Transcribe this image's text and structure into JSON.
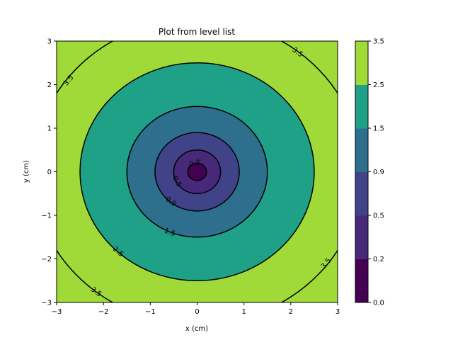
{
  "chart_data": {
    "type": "contour",
    "title": "Plot from level list",
    "xlabel": "x (cm)",
    "ylabel": "y (cm)",
    "xlim": [
      -3,
      3
    ],
    "ylim": [
      -3,
      3
    ],
    "x_ticks": [
      -3,
      -2,
      -1,
      0,
      1,
      2,
      3
    ],
    "y_ticks": [
      -3,
      -2,
      -1,
      0,
      1,
      2,
      3
    ],
    "x_tick_labels": [
      "−3",
      "−2",
      "−1",
      "0",
      "1",
      "2",
      "3"
    ],
    "y_tick_labels": [
      "−3",
      "−2",
      "−1",
      "0",
      "1",
      "2",
      "3"
    ],
    "function": "sqrt(x^2 + y^2)",
    "levels": [
      0.0,
      0.2,
      0.5,
      0.9,
      1.5,
      2.5,
      3.5
    ],
    "level_labels": [
      "0.0",
      "0.2",
      "0.5",
      "0.9",
      "1.5",
      "2.5",
      "3.5"
    ],
    "band_colors": [
      "#440154",
      "#482979",
      "#404387",
      "#2e6f8e",
      "#1fa187",
      "#a0da39"
    ],
    "contour_line_color": "#000000",
    "contour_labels": [
      {
        "level": 0.2,
        "text": "0.2",
        "x": -0.05,
        "y": 0.2
      },
      {
        "level": 0.5,
        "text": "0.5",
        "x": -0.42,
        "y": -0.22
      },
      {
        "level": 0.9,
        "text": "0.9",
        "x": -0.56,
        "y": -0.68
      },
      {
        "level": 1.5,
        "text": "1.5",
        "x": -0.58,
        "y": -1.38
      },
      {
        "level": 2.5,
        "text": "2.5",
        "x": -1.68,
        "y": -1.83
      },
      {
        "level": 3.5,
        "text": "3.5",
        "x": -2.75,
        "y": 2.1
      },
      {
        "level": 3.5,
        "text": "3.5",
        "x": 2.15,
        "y": 2.75
      },
      {
        "level": 3.5,
        "text": "3.5",
        "x": 2.75,
        "y": -2.1
      },
      {
        "level": 3.5,
        "text": "3.5",
        "x": -2.15,
        "y": -2.75
      }
    ],
    "colorbar": {
      "ticks": [
        0.0,
        0.2,
        0.5,
        0.9,
        1.5,
        2.5,
        3.5
      ],
      "tick_labels": [
        "0.0",
        "0.2",
        "0.5",
        "0.9",
        "1.5",
        "2.5",
        "3.5"
      ]
    }
  }
}
